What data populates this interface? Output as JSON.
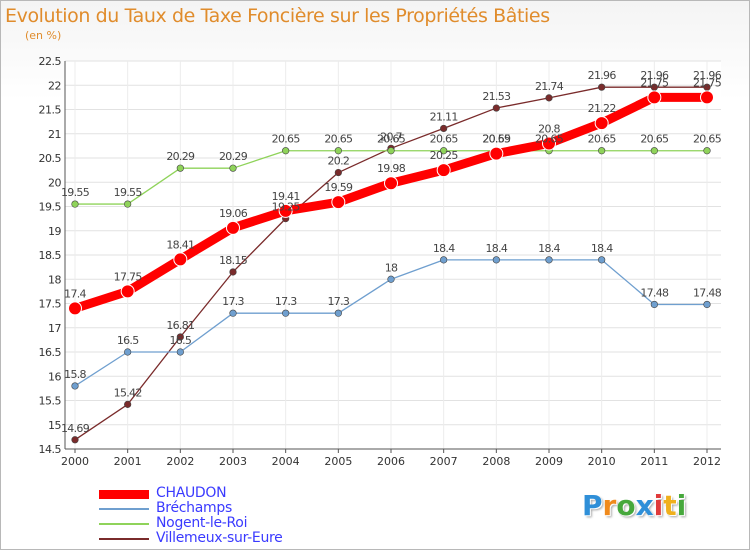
{
  "chart_data": {
    "type": "line",
    "title": "Evolution du Taux de Taxe Foncière sur les Propriétés Bâties",
    "subtitle": "(en %)",
    "xlabel": "",
    "ylabel": "(en %)",
    "ylim": [
      14.5,
      22.5
    ],
    "yticks": [
      "14.5",
      "15",
      "15.5",
      "16",
      "16.5",
      "17",
      "17.5",
      "18",
      "18.5",
      "19",
      "19.5",
      "20",
      "20.5",
      "21",
      "21.5",
      "22",
      "22.5"
    ],
    "x": [
      "2000",
      "2001",
      "2002",
      "2003",
      "2004",
      "2005",
      "2006",
      "2007",
      "2008",
      "2009",
      "2010",
      "2011",
      "2012"
    ],
    "grid": true,
    "legend_position": "bottom-left",
    "series": [
      {
        "name": "CHAUDON",
        "color": "#ff0000",
        "values": [
          17.4,
          17.75,
          18.41,
          19.06,
          19.41,
          19.59,
          19.98,
          20.25,
          20.59,
          20.8,
          21.22,
          21.75,
          21.75
        ],
        "labels": [
          "17.4",
          "17.75",
          "18.41",
          "19.06",
          "19.41",
          "19.59",
          "19.98",
          "20.25",
          "20.59",
          "20.8",
          "21.22",
          "21.75",
          "21.75"
        ]
      },
      {
        "name": "Bréchamps",
        "color": "#6f9fcf",
        "values": [
          15.8,
          16.5,
          16.5,
          17.3,
          17.3,
          17.3,
          18,
          18.4,
          18.4,
          18.4,
          18.4,
          17.48,
          17.48
        ],
        "labels": [
          "15.8",
          "16.5",
          "16.5",
          "17.3",
          "17.3",
          "17.3",
          "18",
          "18.4",
          "18.4",
          "18.4",
          "18.4",
          "17.48",
          "17.48"
        ]
      },
      {
        "name": "Nogent-le-Roi",
        "color": "#8fd35a",
        "values": [
          19.55,
          19.55,
          20.29,
          20.29,
          20.65,
          20.65,
          20.65,
          20.65,
          20.65,
          20.65,
          20.65,
          20.65,
          20.65
        ],
        "labels": [
          "19.55",
          "19.55",
          "20.29",
          "20.29",
          "20.65",
          "20.65",
          "20.65",
          "20.65",
          "20.65",
          "20.65",
          "20.65",
          "20.65",
          "20.65"
        ]
      },
      {
        "name": "Villemeux-sur-Eure",
        "color": "#7a2b2b",
        "values": [
          14.69,
          15.42,
          16.81,
          18.15,
          19.25,
          20.2,
          20.7,
          21.11,
          21.53,
          21.74,
          21.96,
          21.96,
          21.96
        ],
        "labels": [
          "14.69",
          "15.42",
          "16.81",
          "18.15",
          "19.25",
          "20.2",
          "20.7",
          "21.11",
          "21.53",
          "21.74",
          "21.96",
          "21.96",
          "21.96"
        ]
      }
    ]
  },
  "logo": {
    "text": "Proxiti",
    "letters": [
      "P",
      "r",
      "o",
      "x",
      "i",
      "t",
      "i"
    ],
    "colors": [
      "#2f8fd8",
      "#f08a1c",
      "#46a83c",
      "#2f8fd8",
      "#e03a3a",
      "#f0b01c",
      "#46a83c"
    ]
  }
}
